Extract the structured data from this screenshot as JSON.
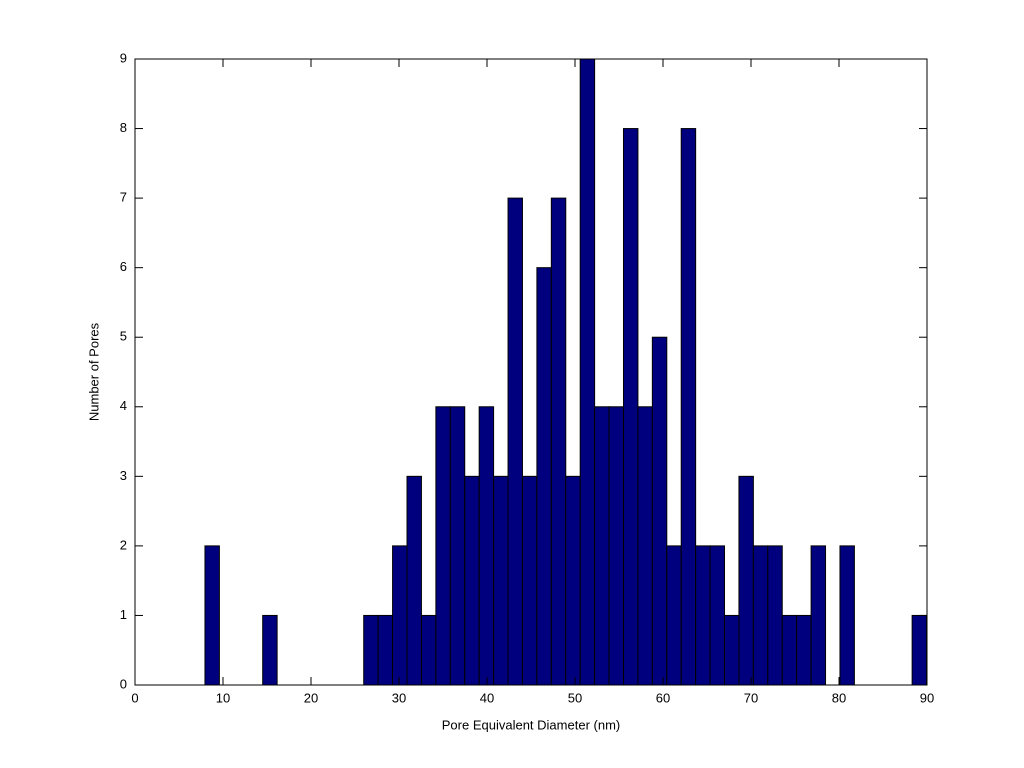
{
  "chart_data": {
    "type": "histogram",
    "xlabel": "Pore Equivalent Diameter (nm)",
    "ylabel": "Number of Pores",
    "bins": [
      7.95,
      9.59,
      11.23,
      12.87,
      14.51,
      16.15,
      17.79,
      19.43,
      21.07,
      22.71,
      24.35,
      25.99,
      27.63,
      29.27,
      30.91,
      32.55,
      34.19,
      35.83,
      37.47,
      39.11,
      40.75,
      42.39,
      44.03,
      45.67,
      47.31,
      48.95,
      50.59,
      52.23,
      53.87,
      55.51,
      57.15,
      58.79,
      60.43,
      62.07,
      63.71,
      65.35,
      66.99,
      68.63,
      70.27,
      71.91,
      73.55,
      75.19,
      76.83,
      78.47,
      80.11,
      81.75,
      83.39,
      85.03,
      86.67,
      88.31,
      89.95
    ],
    "values": [
      2,
      0,
      0,
      0,
      1,
      0,
      0,
      0,
      0,
      0,
      0,
      1,
      1,
      2,
      3,
      1,
      4,
      4,
      3,
      4,
      3,
      7,
      3,
      6,
      7,
      3,
      9,
      4,
      4,
      8,
      4,
      5,
      2,
      8,
      2,
      2,
      1,
      3,
      2,
      2,
      1,
      1,
      2,
      0,
      2,
      0,
      0,
      0,
      0,
      1
    ],
    "color": "#00007f",
    "xlim": [
      0,
      90
    ],
    "xticks": [
      0,
      10,
      20,
      30,
      40,
      50,
      60,
      70,
      80,
      90
    ],
    "ylim": [
      0,
      9
    ],
    "yticks": [
      0,
      1,
      2,
      3,
      4,
      5,
      6,
      7,
      8,
      9
    ]
  }
}
